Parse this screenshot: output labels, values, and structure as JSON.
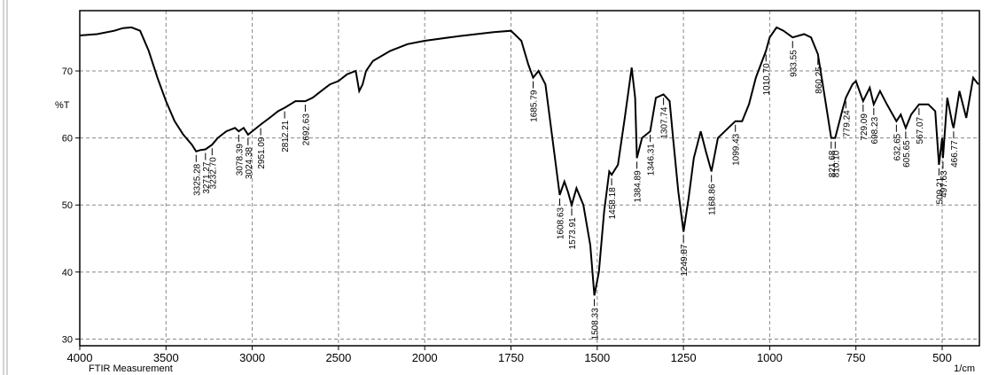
{
  "chart_data": {
    "type": "line",
    "ylabel": "%T",
    "xlabel": "1/cm",
    "caption": "FTIR Measurement",
    "color": "#000000",
    "grid": true,
    "xlim": [
      4000,
      392
    ],
    "xticks": [
      4000,
      3500,
      3000,
      2500,
      2000,
      1750,
      1500,
      1250,
      1000,
      750,
      500
    ],
    "ylim": [
      29,
      79
    ],
    "yticks": [
      30,
      40,
      50,
      60,
      70
    ],
    "x": [
      4000,
      3900,
      3800,
      3750,
      3700,
      3650,
      3600,
      3550,
      3500,
      3450,
      3400,
      3350,
      3325.28,
      3300,
      3271.27,
      3232.7,
      3200,
      3150,
      3100,
      3078.39,
      3050,
      3024.38,
      3000,
      2951.09,
      2900,
      2850,
      2812.21,
      2750,
      2692.63,
      2650,
      2600,
      2550,
      2500,
      2450,
      2400,
      2380,
      2360,
      2340,
      2300,
      2200,
      2100,
      2000,
      1900,
      1800,
      1750,
      1720,
      1700,
      1685.79,
      1670,
      1650,
      1630,
      1608.63,
      1595,
      1585,
      1573.91,
      1560,
      1540,
      1520,
      1508.33,
      1495,
      1480,
      1465,
      1458.18,
      1440,
      1420,
      1400,
      1390,
      1384.89,
      1370,
      1346.31,
      1330,
      1307.74,
      1290,
      1280,
      1265,
      1249.87,
      1235,
      1220,
      1200,
      1185,
      1168.86,
      1150,
      1120,
      1099.43,
      1080,
      1060,
      1040,
      1010.7,
      1000,
      980,
      960,
      933.55,
      900,
      880,
      860.25,
      840,
      821.68,
      810.1,
      790,
      779.24,
      760,
      750,
      729.09,
      710,
      698.23,
      680,
      660,
      632.65,
      620,
      605.65,
      590,
      567.07,
      540,
      520,
      509.21,
      500,
      497.63,
      485,
      470,
      466.77,
      450,
      430,
      410,
      395
    ],
    "values": [
      75.3,
      75.5,
      76,
      76.4,
      76.5,
      76,
      73,
      69,
      65.5,
      62.5,
      60.5,
      59,
      58,
      58.2,
      58.3,
      59,
      60,
      61,
      61.5,
      61,
      61.5,
      60.5,
      61,
      62,
      63,
      64,
      64.5,
      65.5,
      65.5,
      66,
      67,
      68,
      68.5,
      69.5,
      70,
      67,
      68,
      70,
      71.5,
      73,
      74,
      74.5,
      75.2,
      75.8,
      76,
      74.5,
      71,
      69,
      70,
      68,
      60,
      51.5,
      53.5,
      52,
      50,
      52.5,
      50,
      44,
      36.5,
      40,
      49,
      55,
      54.5,
      56,
      63,
      70.5,
      66,
      57,
      60,
      61,
      66,
      66.5,
      65.5,
      60,
      52,
      46,
      51,
      57,
      61,
      58,
      55,
      60,
      61.5,
      62.5,
      62.5,
      65,
      69,
      73,
      75,
      76.5,
      76,
      75,
      75.5,
      75,
      72.5,
      66,
      60,
      60,
      64,
      66,
      68,
      68.5,
      65.5,
      67.5,
      65,
      67,
      65,
      62.5,
      63.5,
      61.5,
      63.5,
      65,
      65,
      64,
      56,
      60,
      57,
      66,
      62,
      61.5,
      67,
      63,
      69,
      68
    ],
    "annotations": [
      {
        "x": 3325.28,
        "label": "3325.28"
      },
      {
        "x": 3271.27,
        "label": "3271.27"
      },
      {
        "x": 3232.7,
        "label": "3232.70"
      },
      {
        "x": 3078.39,
        "label": "3078.39"
      },
      {
        "x": 3024.38,
        "label": "3024.38"
      },
      {
        "x": 2951.09,
        "label": "2951.09"
      },
      {
        "x": 2812.21,
        "label": "2812.21"
      },
      {
        "x": 2692.63,
        "label": "2692.63"
      },
      {
        "x": 1685.79,
        "label": "1685.79"
      },
      {
        "x": 1608.63,
        "label": "1608.63"
      },
      {
        "x": 1573.91,
        "label": "1573.91"
      },
      {
        "x": 1508.33,
        "label": "1508.33"
      },
      {
        "x": 1458.18,
        "label": "1458.18"
      },
      {
        "x": 1384.89,
        "label": "1384.89"
      },
      {
        "x": 1346.31,
        "label": "1346.31"
      },
      {
        "x": 1307.74,
        "label": "1307.74"
      },
      {
        "x": 1249.87,
        "label": "1249.87"
      },
      {
        "x": 1168.86,
        "label": "1168.86"
      },
      {
        "x": 1099.43,
        "label": "1099.43"
      },
      {
        "x": 1010.7,
        "label": "1010.70"
      },
      {
        "x": 933.55,
        "label": "933.55"
      },
      {
        "x": 860.25,
        "label": "860.25"
      },
      {
        "x": 821.68,
        "label": "821.68"
      },
      {
        "x": 810.1,
        "label": "810.10"
      },
      {
        "x": 779.24,
        "label": "779.24"
      },
      {
        "x": 729.09,
        "label": "729.09"
      },
      {
        "x": 698.23,
        "label": "698.23"
      },
      {
        "x": 632.65,
        "label": "632.65"
      },
      {
        "x": 605.65,
        "label": "605.65"
      },
      {
        "x": 567.07,
        "label": "567.07"
      },
      {
        "x": 509.21,
        "label": "509.21"
      },
      {
        "x": 497.63,
        "label": "497.63"
      },
      {
        "x": 466.77,
        "label": "466.77"
      }
    ]
  }
}
